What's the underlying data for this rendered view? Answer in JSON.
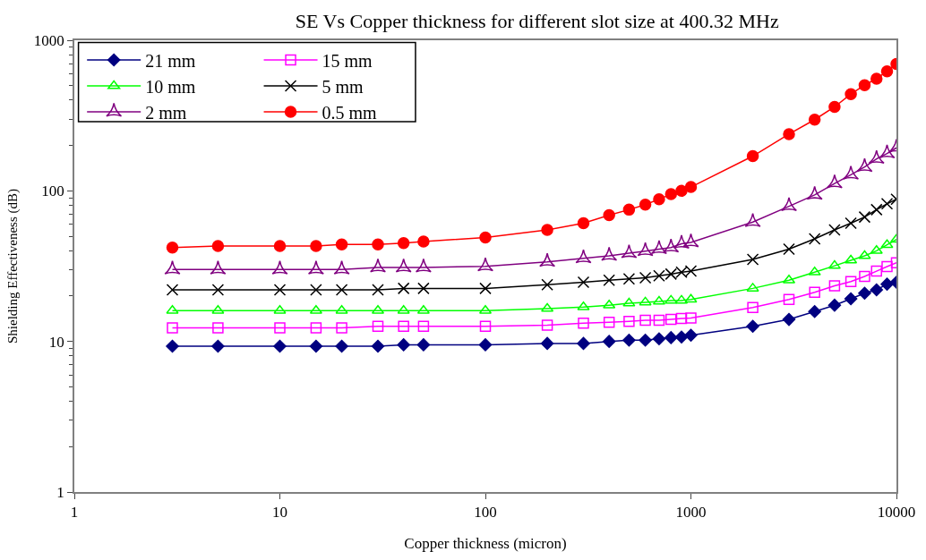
{
  "chart_data": {
    "type": "line",
    "title": "SE Vs Copper thickness for different slot size at 400.32 MHz",
    "xlabel": "Copper thickness (micron)",
    "ylabel": "Shielding Effectiveness (dB)",
    "x": [
      3,
      5,
      10,
      15,
      20,
      30,
      40,
      50,
      100,
      200,
      300,
      400,
      500,
      600,
      700,
      800,
      900,
      1000,
      2000,
      3000,
      4000,
      5000,
      6000,
      7000,
      8000,
      9000,
      10000
    ],
    "log": "xy",
    "xlim": [
      1,
      10000
    ],
    "ylim": [
      1,
      1000
    ],
    "xticks": [
      1,
      10,
      100,
      1000,
      10000
    ],
    "yticks": [
      1,
      10,
      100,
      1000
    ],
    "grid": false,
    "legend": "top left",
    "series": [
      {
        "name": "21 mm",
        "color": "#000080",
        "marker": "diamond",
        "values": [
          9.3,
          9.3,
          9.3,
          9.3,
          9.3,
          9.3,
          9.5,
          9.5,
          9.5,
          9.7,
          9.7,
          10,
          10.2,
          10.2,
          10.4,
          10.6,
          10.7,
          11,
          12.6,
          14,
          15.8,
          17.4,
          19.2,
          20.9,
          22,
          24,
          24.7
        ]
      },
      {
        "name": "15 mm",
        "color": "#ff00ff",
        "marker": "square",
        "values": [
          12.3,
          12.3,
          12.3,
          12.3,
          12.3,
          12.6,
          12.6,
          12.6,
          12.6,
          12.8,
          13.2,
          13.4,
          13.6,
          13.8,
          13.8,
          14,
          14.2,
          14.3,
          16.8,
          19,
          21.2,
          23.4,
          25,
          27,
          29.3,
          31.4,
          33.3
        ]
      },
      {
        "name": "10 mm",
        "color": "#00ff00",
        "marker": "triangle",
        "values": [
          16,
          16,
          16,
          16,
          16,
          16,
          16,
          16,
          16,
          16.5,
          16.9,
          17.4,
          17.9,
          18.2,
          18.4,
          18.7,
          18.7,
          19,
          22.5,
          25.5,
          28.8,
          31.8,
          34.6,
          37,
          40,
          43.8,
          47.5
        ]
      },
      {
        "name": "5 mm",
        "color": "#000000",
        "marker": "cross",
        "values": [
          22,
          22,
          22,
          22,
          22,
          22,
          22.5,
          22.5,
          22.5,
          23.8,
          24.7,
          25.5,
          26,
          26.5,
          27.3,
          28,
          28.8,
          29.3,
          35,
          41,
          48,
          55,
          61,
          67,
          75,
          82,
          88
        ]
      },
      {
        "name": "2 mm",
        "color": "#800080",
        "marker": "star",
        "values": [
          30,
          30,
          30,
          30,
          30,
          31,
          31,
          31,
          31.5,
          33.7,
          35.6,
          37,
          38.5,
          39.8,
          41,
          42,
          44.5,
          45.5,
          62,
          79,
          94,
          112,
          128,
          144,
          163,
          177,
          193
        ]
      },
      {
        "name": "0.5 mm",
        "color": "#ff0000",
        "marker": "circle",
        "values": [
          42,
          43,
          43,
          43,
          44,
          44,
          45,
          46,
          49,
          55,
          61,
          69,
          75,
          81,
          88,
          95,
          100,
          106,
          170,
          238,
          297,
          361,
          439,
          503,
          556,
          622,
          695
        ]
      }
    ]
  }
}
